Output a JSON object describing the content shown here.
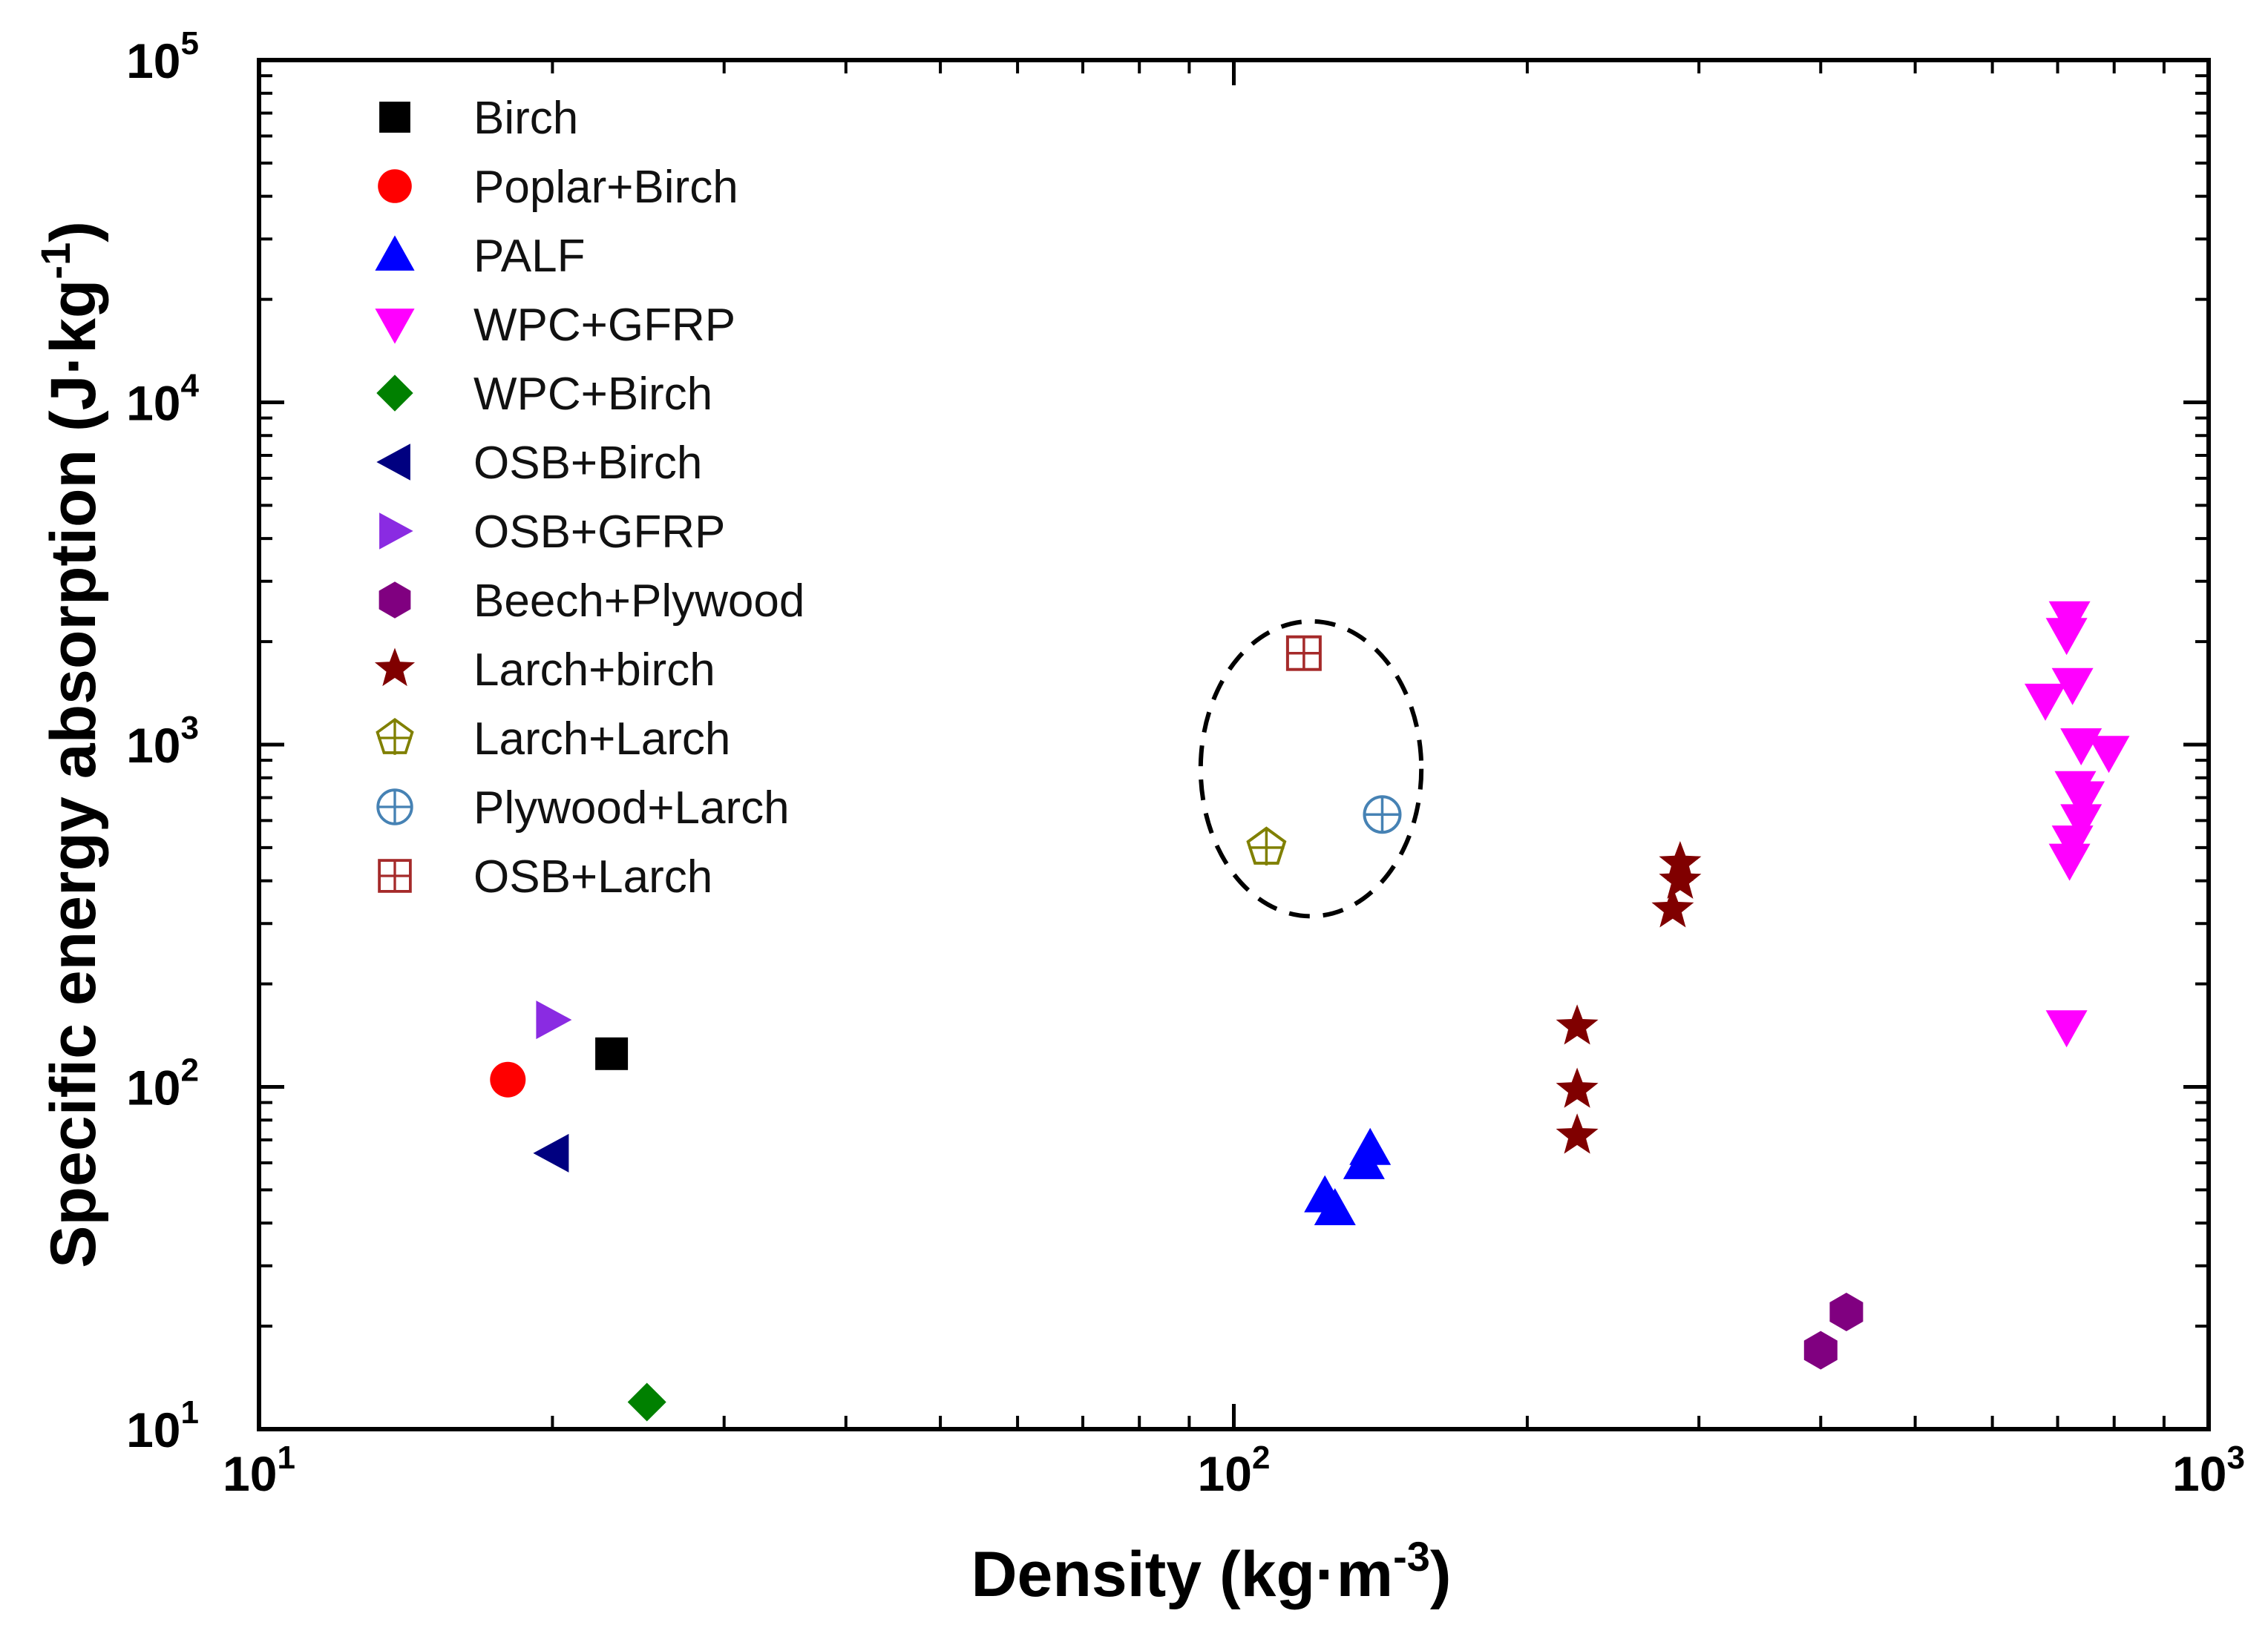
{
  "chart_data": {
    "type": "scatter",
    "title": "",
    "xscale": "log",
    "yscale": "log",
    "xlabel": "Density (kg·m",
    "xlabel_sup": "-3",
    "xlabel_end": ")",
    "ylabel": "Specific energy absorption (J·kg",
    "ylabel_sup": "-1",
    "ylabel_end": ")",
    "xlim": [
      10,
      1000
    ],
    "ylim": [
      10,
      100000
    ],
    "x_ticks": [
      {
        "base": "10",
        "exp": "1"
      },
      {
        "base": "10",
        "exp": "2"
      },
      {
        "base": "10",
        "exp": "3"
      }
    ],
    "y_ticks": [
      {
        "base": "10",
        "exp": "1"
      },
      {
        "base": "10",
        "exp": "2"
      },
      {
        "base": "10",
        "exp": "3"
      },
      {
        "base": "10",
        "exp": "4"
      },
      {
        "base": "10",
        "exp": "5"
      }
    ],
    "legend_position": "top-left",
    "series": [
      {
        "name": "Birch",
        "marker": "square",
        "color": "#000000",
        "points": [
          [
            23,
            125
          ]
        ]
      },
      {
        "name": "Poplar+Birch",
        "marker": "circle",
        "color": "#ff0000",
        "points": [
          [
            18,
            105
          ]
        ]
      },
      {
        "name": "PALF",
        "marker": "triangle-up",
        "color": "#0000ff",
        "points": [
          [
            124,
            48
          ],
          [
            127,
            44
          ],
          [
            136,
            60
          ],
          [
            138,
            66
          ]
        ]
      },
      {
        "name": "WPC+GFRP",
        "marker": "triangle-down",
        "color": "#ff00ff",
        "points": [
          [
            680,
            1350
          ],
          [
            720,
            2350
          ],
          [
            715,
            2100
          ],
          [
            725,
            1500
          ],
          [
            740,
            1000
          ],
          [
            790,
            950
          ],
          [
            730,
            750
          ],
          [
            745,
            700
          ],
          [
            740,
            600
          ],
          [
            725,
            520
          ],
          [
            720,
            460
          ],
          [
            715,
            150
          ]
        ]
      },
      {
        "name": "WPC+Birch",
        "marker": "diamond",
        "color": "#008000",
        "points": [
          [
            25,
            12
          ]
        ]
      },
      {
        "name": "OSB+Birch",
        "marker": "triangle-left",
        "color": "#000080",
        "points": [
          [
            20,
            64
          ]
        ]
      },
      {
        "name": "OSB+GFRP",
        "marker": "triangle-right",
        "color": "#8a2be2",
        "points": [
          [
            20,
            157
          ]
        ]
      },
      {
        "name": "Beech+Plywood",
        "marker": "hexagon",
        "color": "#800080",
        "points": [
          [
            400,
            17
          ],
          [
            425,
            22
          ]
        ]
      },
      {
        "name": "Larch+birch",
        "marker": "star",
        "color": "#800000",
        "points": [
          [
            225,
            150
          ],
          [
            225,
            98
          ],
          [
            225,
            72
          ],
          [
            282,
            330
          ],
          [
            287,
            400
          ],
          [
            287,
            450
          ]
        ]
      },
      {
        "name": "Larch+Larch",
        "marker": "pentagon-open",
        "color": "#808000",
        "points": [
          [
            108,
            500
          ]
        ]
      },
      {
        "name": "Plywood+Larch",
        "marker": "circle-plus-open",
        "color": "#4682b4",
        "points": [
          [
            142,
            625
          ]
        ]
      },
      {
        "name": "OSB+Larch",
        "marker": "square-plus-open",
        "color": "#a52a2a",
        "points": [
          [
            118,
            1850
          ]
        ]
      }
    ],
    "annotations": [
      {
        "type": "dashed-ellipse",
        "around": [
          "Larch+Larch",
          "Plywood+Larch",
          "OSB+Larch"
        ],
        "center": [
          120,
          850
        ],
        "x_range": [
          95,
          160
        ],
        "y_range": [
          330,
          2400
        ]
      }
    ]
  }
}
